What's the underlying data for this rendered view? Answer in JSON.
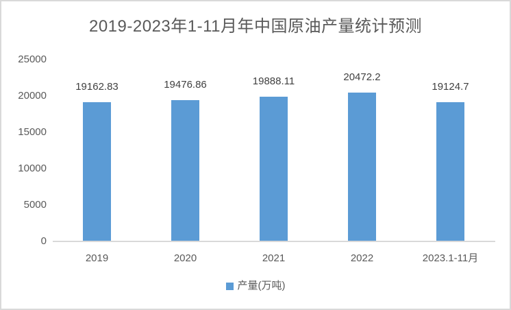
{
  "chart_data": {
    "type": "bar",
    "title": "2019-2023年1-11月年中国原油产量统计预测",
    "categories": [
      "2019",
      "2020",
      "2021",
      "2022",
      "2023.1-11月"
    ],
    "series": [
      {
        "name": "产量(万吨)",
        "values": [
          19162.83,
          19476.86,
          19888.11,
          20472.2,
          19124.7
        ],
        "value_labels": [
          "19162.83",
          "19476.86",
          "19888.11",
          "20472.2",
          "19124.7"
        ]
      }
    ],
    "xlabel": "",
    "ylabel": "",
    "y_ticks": [
      0,
      5000,
      10000,
      15000,
      20000,
      25000
    ],
    "ylim": [
      0,
      25000
    ],
    "grid": false,
    "legend": {
      "position": "bottom",
      "items": [
        {
          "label": "产量(万吨)",
          "marker": "square",
          "color": "#5B9BD5"
        }
      ]
    },
    "colors": {
      "bar": "#5B9BD5",
      "title_text": "#595959",
      "axis_text": "#595959",
      "data_label_text": "#404040",
      "axis_line": "#D9D9D9",
      "frame_border": "#D9D9D9",
      "background": "#FFFFFF"
    }
  }
}
